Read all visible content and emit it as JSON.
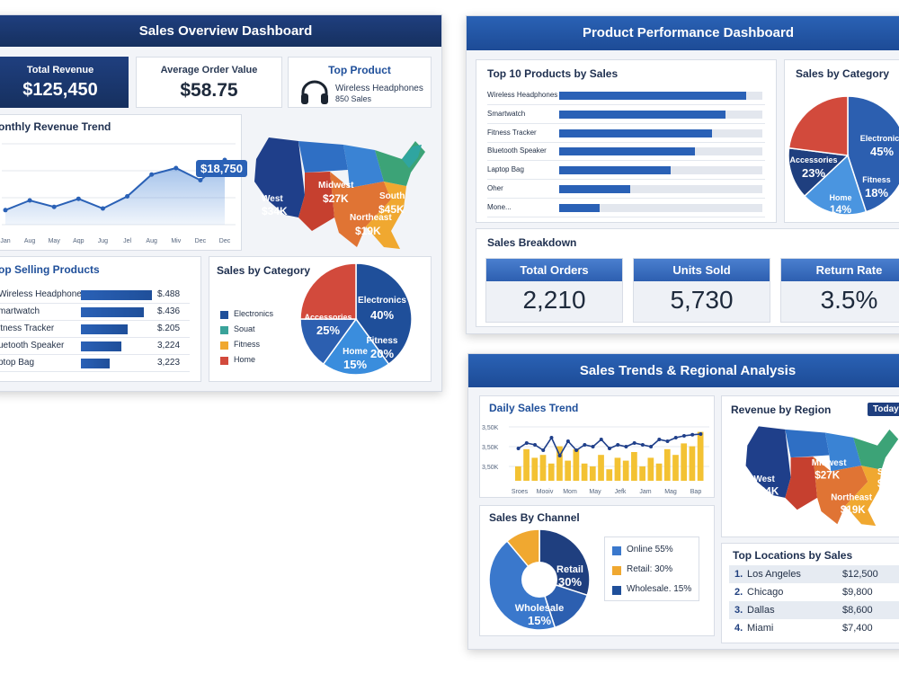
{
  "sales_overview": {
    "title": "Sales Overview Dashboard",
    "total_revenue": {
      "label": "Total Revenue",
      "value": "$125,450"
    },
    "aov": {
      "label": "Average Order Value",
      "value": "$58.75"
    },
    "top_product": {
      "label": "Top Product",
      "name": "Wireless Headphones",
      "sales": "850 Sales"
    },
    "monthly_trend": {
      "title": "onthly Revenue Trend",
      "callout": "$18,750",
      "y_ticks": [
        "K",
        "K",
        "K",
        "K"
      ],
      "months": [
        "Jan",
        "Aug",
        "May",
        "Aqp",
        "Jug",
        "Jel",
        "Aug",
        "Miv",
        "Dec",
        "Dec"
      ]
    },
    "top_selling": {
      "title": "op Selling Products",
      "items": [
        {
          "name": "Wireless Headphones",
          "value": "$.488",
          "fraction": 0.88
        },
        {
          "name": "martwatch",
          "value": "$.436",
          "fraction": 0.78
        },
        {
          "name": "itness Tracker",
          "value": "$.205",
          "fraction": 0.58
        },
        {
          "name": "uetooth Speaker",
          "value": "3,224",
          "fraction": 0.5
        },
        {
          "name": "ptop Bag",
          "value": "3,223",
          "fraction": 0.36
        }
      ]
    },
    "category": {
      "title": "Sales by Category",
      "legend": [
        {
          "name": "Electronics",
          "color": "#1f4f9a"
        },
        {
          "name": "Souat",
          "color": "#3aa39a"
        },
        {
          "name": "Fitness",
          "color": "#f0a830"
        },
        {
          "name": "Home",
          "color": "#d24a3c"
        }
      ],
      "slices": [
        {
          "name": "Electronics",
          "pct": "40%",
          "value": 40,
          "color": "#1f4f9a"
        },
        {
          "name": "Fitness",
          "pct": "20%",
          "value": 20,
          "color": "#3a8ddd"
        },
        {
          "name": "Home",
          "pct": "15%",
          "value": 15,
          "color": "#2c5fb0"
        },
        {
          "name": "Accessories",
          "pct": "25%",
          "value": 25,
          "color": "#d24a3c"
        }
      ]
    },
    "map": {
      "regions": [
        {
          "name": "West",
          "value": "$34K"
        },
        {
          "name": "Midwest",
          "value": "$27K"
        },
        {
          "name": "South",
          "value": "$45K"
        },
        {
          "name": "Northeast",
          "value": "$19K"
        }
      ]
    }
  },
  "product_performance": {
    "title": "Product Performance Dashboard",
    "top10": {
      "title": "Top 10 Products by Sales",
      "items": [
        {
          "name": "Wireless Headphones",
          "fraction": 0.92
        },
        {
          "name": "Smartwatch",
          "fraction": 0.82
        },
        {
          "name": "Fitness Tracker",
          "fraction": 0.75
        },
        {
          "name": "Bluetooth Speaker",
          "fraction": 0.67
        },
        {
          "name": "Laptop Bag",
          "fraction": 0.55
        },
        {
          "name": "Oher",
          "fraction": 0.35
        },
        {
          "name": "Mone...",
          "fraction": 0.2
        }
      ]
    },
    "category": {
      "title": "Sales by Category",
      "slices": [
        {
          "name": "Electronics",
          "pct": "45%",
          "value": 45,
          "color": "#2c5fb0"
        },
        {
          "name": "Fitness",
          "pct": "18%",
          "value": 18,
          "color": "#4a95e0"
        },
        {
          "name": "Home",
          "pct": "14%",
          "value": 14,
          "color": "#1f3f7f"
        },
        {
          "name": "Accessories",
          "pct": "23%",
          "value": 23,
          "color": "#d24a3c"
        }
      ]
    },
    "breakdown": {
      "title": "Sales Breakdown",
      "stats": [
        {
          "label": "Total Orders",
          "value": "2,210"
        },
        {
          "label": "Units Sold",
          "value": "5,730"
        },
        {
          "label": "Return Rate",
          "value": "3.5%"
        }
      ]
    }
  },
  "trends_regional": {
    "title": "Sales Trends & Regional Analysis",
    "daily": {
      "title": "Daily Sales Trend",
      "y_ticks": [
        "3,50K",
        "3,50K",
        "3,50K"
      ],
      "x_labels": [
        "Sroes",
        "Mooiv",
        "Mom",
        "May",
        "Jefk",
        "Jam",
        "Mag",
        "Bap"
      ],
      "bars": [
        0.25,
        0.55,
        0.4,
        0.45,
        0.3,
        0.6,
        0.35,
        0.55,
        0.3,
        0.25,
        0.45,
        0.2,
        0.4,
        0.35,
        0.5,
        0.25,
        0.4,
        0.3,
        0.55,
        0.45,
        0.65,
        0.6,
        0.85
      ],
      "line": [
        0.6,
        0.75,
        0.7,
        0.55,
        0.9,
        0.4,
        0.8,
        0.55,
        0.7,
        0.65,
        0.85,
        0.6,
        0.7,
        0.65,
        0.75,
        0.7,
        0.65,
        0.85,
        0.8,
        0.9,
        0.95,
        0.98,
        1.0
      ]
    },
    "region": {
      "title": "Revenue by Region",
      "badge": "Today:",
      "regions": [
        {
          "name": "West",
          "value": "$34K"
        },
        {
          "name": "Midwest",
          "value": "$27K"
        },
        {
          "name": "Sout",
          "value": "$45"
        },
        {
          "name": "Northeast",
          "value": "$19K"
        }
      ]
    },
    "channel": {
      "title": "Sales By Channel",
      "slices": [
        {
          "name": "Retail",
          "pct": "30%",
          "value": 30,
          "color": "#1f3f7f"
        },
        {
          "name": "Wholesale",
          "pct": "15%",
          "value": 15,
          "color": "#2c5fb0"
        },
        {
          "name": "Online",
          "pct": "55%",
          "value": 55,
          "color": "#3a78cc"
        }
      ],
      "legend": [
        {
          "text": "Online 55%",
          "color": "#3a78cc"
        },
        {
          "text": "Retail: 30%",
          "color": "#f0a830"
        },
        {
          "text": "Wholesale. 15%",
          "color": "#1f4f9a"
        }
      ]
    },
    "locations": {
      "title": "Top Locations by Sales",
      "rows": [
        {
          "rank": "1.",
          "city": "Los Angeles",
          "value": "$12,500"
        },
        {
          "rank": "2.",
          "city": "Chicago",
          "value": "$9,800"
        },
        {
          "rank": "3.",
          "city": "Dallas",
          "value": "$8,600"
        },
        {
          "rank": "4.",
          "city": "Miami",
          "value": "$7,400"
        }
      ]
    }
  }
}
